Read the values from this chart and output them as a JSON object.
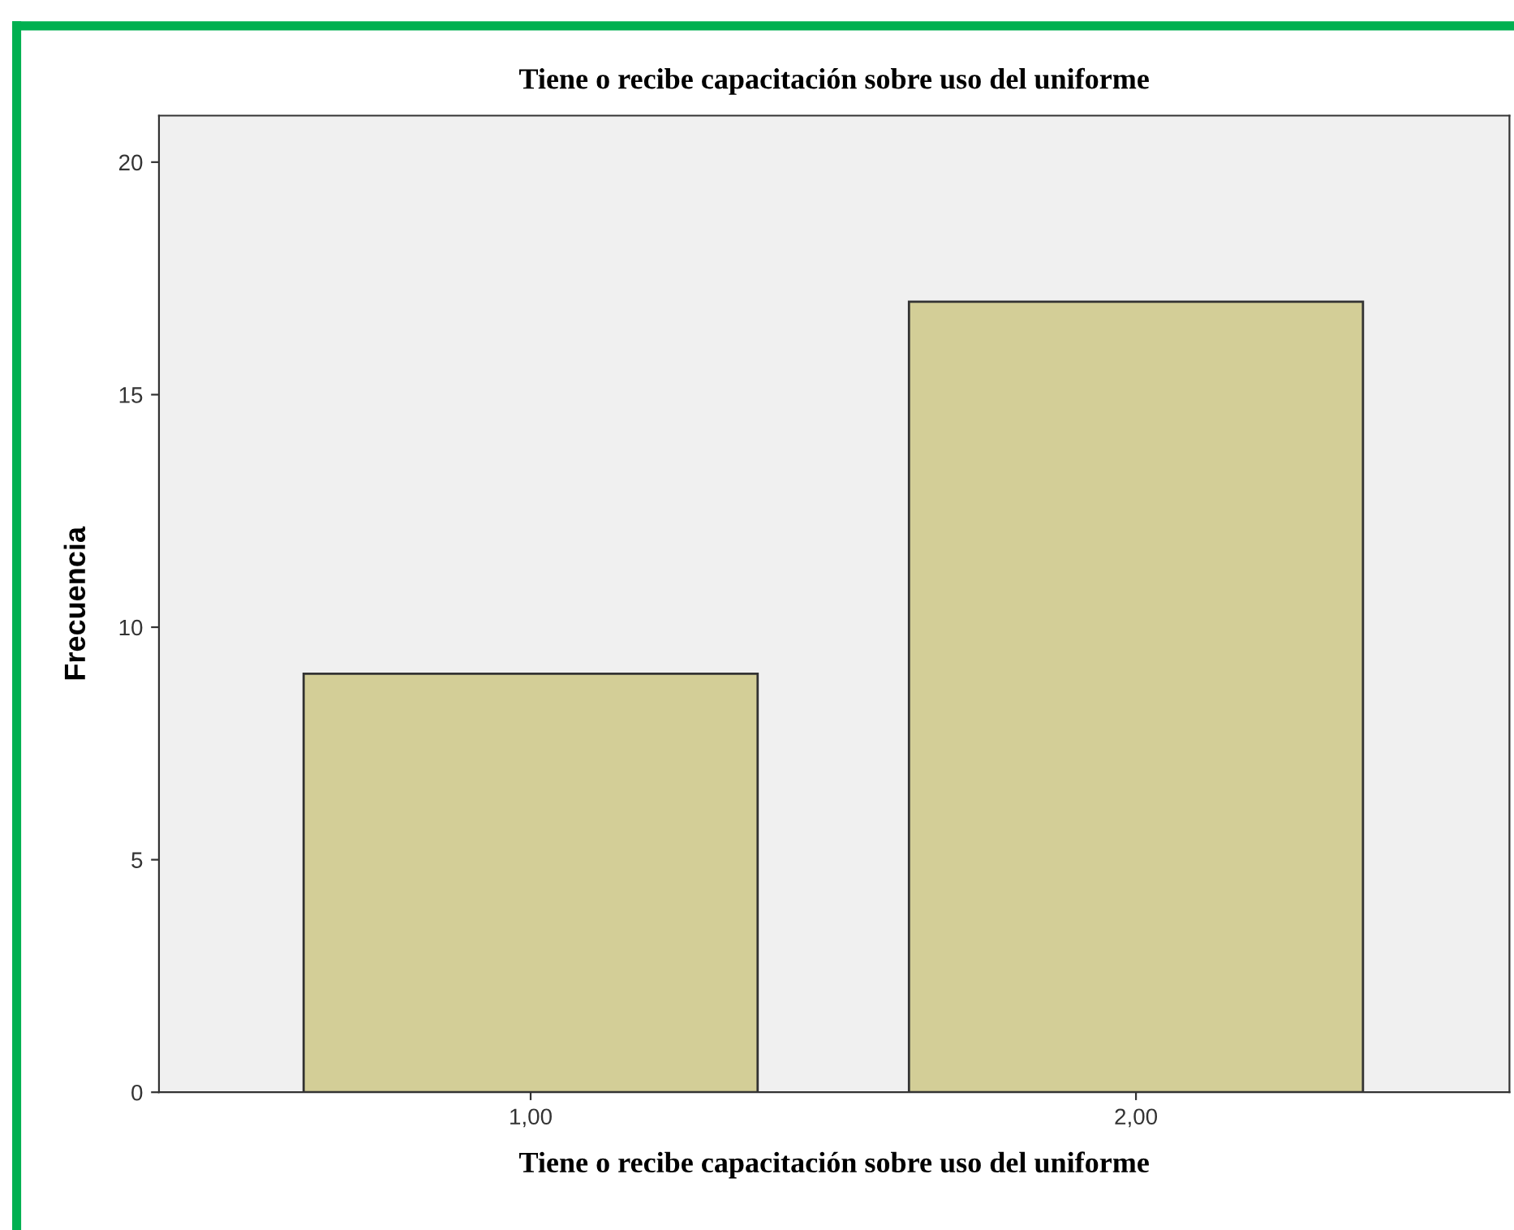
{
  "chart_data": {
    "type": "bar",
    "title": "Tiene o recibe capacitación sobre uso del uniforme",
    "xlabel": "Tiene o recibe capacitación sobre uso del uniforme",
    "ylabel": "Frecuencia",
    "categories": [
      "1,00",
      "2,00"
    ],
    "values": [
      9,
      17
    ],
    "color": "#d3ce97",
    "ylim": [
      0,
      21
    ],
    "yticks": [
      0,
      5,
      10,
      15,
      20
    ],
    "grid": false,
    "legend": false
  }
}
